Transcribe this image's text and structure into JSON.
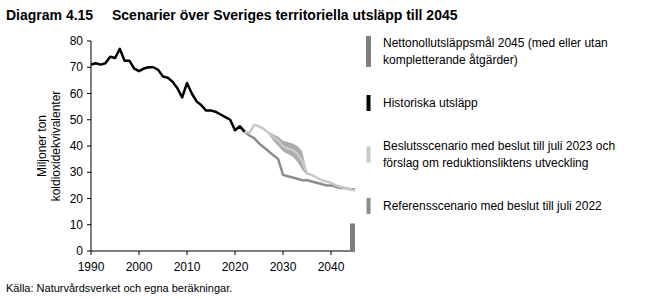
{
  "chart_data": {
    "type": "line",
    "figure_label": "Diagram 4.15",
    "title": "Scenarier över Sveriges territoriella utsläpp till 2045",
    "ylabel": "Miljoner ton koldioxidekvivalenter",
    "source": "Källa: Naturvårdsverket och egna beräkningar.",
    "xlim": [
      1990,
      2045
    ],
    "xticks": [
      1990,
      2000,
      2010,
      2020,
      2030,
      2040
    ],
    "ylim": [
      0,
      80
    ],
    "yticks": [
      0,
      10,
      20,
      30,
      40,
      50,
      60,
      70,
      80
    ],
    "grid": false,
    "legend": "right",
    "series": [
      {
        "name": "Nettonollutsläppsmål 2045 (med eller utan kompletterande åtgärder)",
        "type": "bar",
        "color": "#7f7f7f",
        "x": [
          2045
        ],
        "values": [
          10.5
        ]
      },
      {
        "name": "Historiska utsläpp",
        "type": "line",
        "color": "#000000",
        "x": [
          1990,
          1991,
          1992,
          1993,
          1994,
          1995,
          1996,
          1997,
          1998,
          1999,
          2000,
          2001,
          2002,
          2003,
          2004,
          2005,
          2006,
          2007,
          2008,
          2009,
          2010,
          2011,
          2012,
          2013,
          2014,
          2015,
          2016,
          2017,
          2018,
          2019,
          2020,
          2021,
          2022
        ],
        "values": [
          71,
          71.5,
          71,
          71.5,
          74,
          73.5,
          77,
          72.5,
          72.5,
          69.5,
          68.5,
          69.5,
          70,
          70,
          69,
          66.5,
          66,
          64.5,
          62,
          58.5,
          64,
          60,
          57,
          55.5,
          53.5,
          53.5,
          53,
          52,
          51,
          50,
          46,
          47.5,
          45.5
        ]
      },
      {
        "name": "Beslutsscenario med beslut till juli 2023 och förslag om reduktionsliktens utveckling",
        "type": "line",
        "color": "#c8c8c8",
        "x": [
          2021,
          2022,
          2023,
          2024,
          2025,
          2026,
          2027,
          2028,
          2029,
          2030,
          2031,
          2032,
          2033,
          2034,
          2035,
          2036,
          2037,
          2038,
          2039,
          2040,
          2041,
          2042,
          2043,
          2044,
          2045
        ],
        "values": [
          47.5,
          45.5,
          45,
          48,
          47.5,
          46.5,
          45,
          43.5,
          42,
          40,
          39,
          38.5,
          37,
          34.5,
          29.5,
          29,
          28,
          27,
          26.5,
          26,
          25,
          24.5,
          24,
          23.5,
          23
        ],
        "low": [
          null,
          null,
          null,
          null,
          null,
          null,
          44.5,
          42,
          40,
          38,
          37,
          36,
          34,
          31,
          29,
          null,
          null,
          null,
          null,
          null,
          null,
          null,
          null,
          null,
          null
        ],
        "high": [
          null,
          null,
          null,
          null,
          null,
          null,
          45.5,
          44.5,
          43.5,
          42,
          41.5,
          41,
          40,
          38,
          30,
          null,
          null,
          null,
          null,
          null,
          null,
          null,
          null,
          null,
          null
        ]
      },
      {
        "name": "Referensscenario med beslut till juli 2022",
        "type": "line",
        "color": "#8c8c8c",
        "x": [
          2021,
          2022,
          2023,
          2024,
          2025,
          2026,
          2027,
          2028,
          2029,
          2030,
          2031,
          2032,
          2033,
          2034,
          2035,
          2036,
          2037,
          2038,
          2039,
          2040,
          2041,
          2042,
          2043,
          2044,
          2045
        ],
        "values": [
          47.5,
          45.5,
          44,
          43,
          41,
          39.5,
          38,
          36.5,
          35,
          29,
          28.5,
          28,
          27.5,
          27,
          27,
          26.5,
          26,
          25.5,
          25,
          25,
          24.5,
          24,
          24,
          23.5,
          23.5
        ]
      }
    ]
  }
}
